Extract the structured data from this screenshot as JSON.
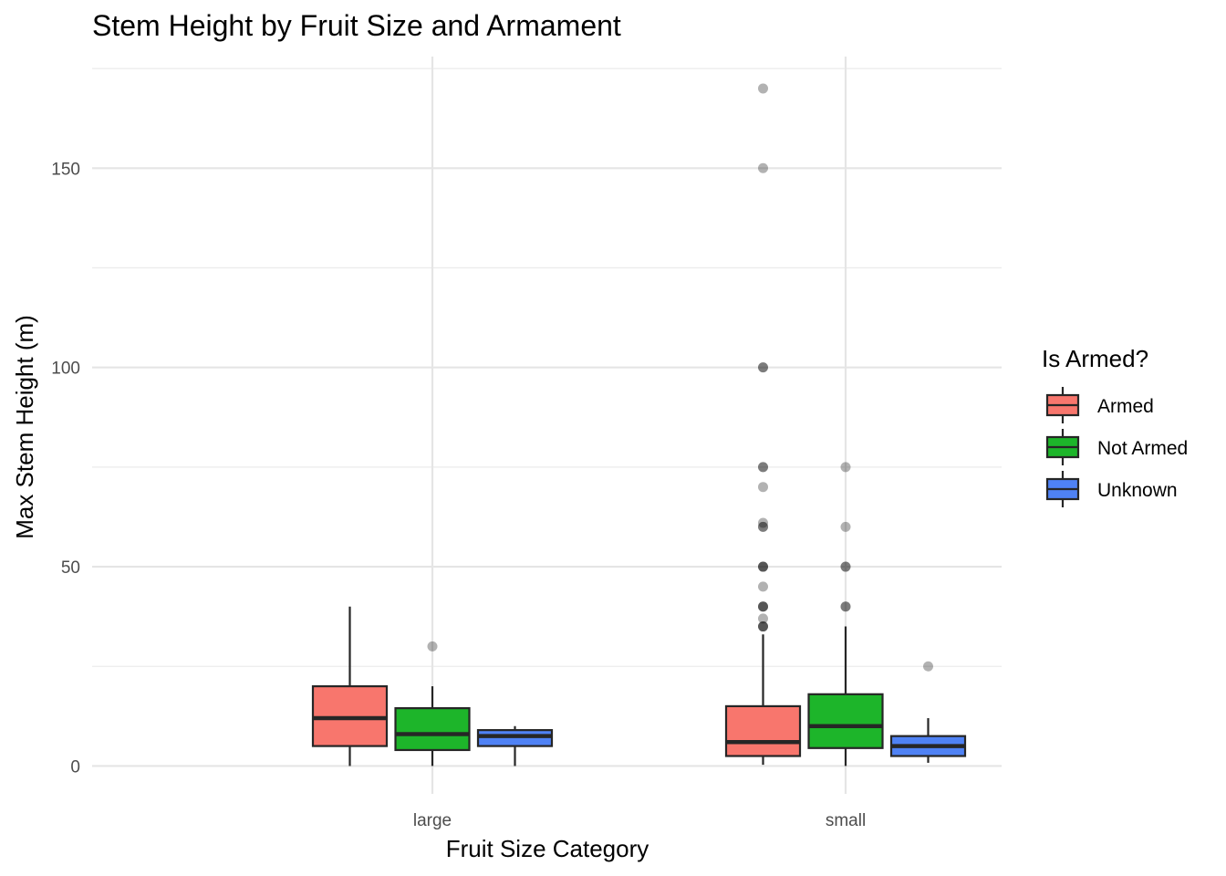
{
  "chart_data": {
    "type": "boxplot",
    "title": "Stem Height by Fruit Size and Armament",
    "xlabel": "Fruit Size Category",
    "ylabel": "Max Stem Height (m)",
    "ylim": [
      -7,
      178
    ],
    "yticks": [
      0,
      50,
      100,
      150
    ],
    "categories": [
      "large",
      "small"
    ],
    "grid": true,
    "legend": {
      "title": "Is Armed?",
      "position": "right"
    },
    "series": [
      {
        "name": "Armed",
        "color": "#F8766D",
        "boxes": [
          {
            "category": "large",
            "whisker_low": 0,
            "q1": 5,
            "median": 12,
            "q3": 20,
            "whisker_high": 40,
            "outliers": []
          },
          {
            "category": "small",
            "whisker_low": 0.3,
            "q1": 2.5,
            "median": 6,
            "q3": 15,
            "whisker_high": 33,
            "outliers": [
              170,
              150,
              100,
              100,
              75,
              75,
              70,
              61,
              60,
              60,
              50,
              50,
              50,
              45,
              40,
              40,
              40,
              37,
              35,
              35,
              35
            ]
          }
        ]
      },
      {
        "name": "Not Armed",
        "color": "#1DB52A",
        "boxes": [
          {
            "category": "large",
            "whisker_low": 0,
            "q1": 4,
            "median": 8,
            "q3": 14.5,
            "whisker_high": 20,
            "outliers": [
              30
            ]
          },
          {
            "category": "small",
            "whisker_low": 0,
            "q1": 4.5,
            "median": 10,
            "q3": 18,
            "whisker_high": 35,
            "outliers": [
              75,
              60,
              50,
              50,
              40,
              40
            ]
          }
        ]
      },
      {
        "name": "Unknown",
        "color": "#4F82F5",
        "boxes": [
          {
            "category": "large",
            "whisker_low": 0,
            "q1": 5,
            "median": 7.5,
            "q3": 9,
            "whisker_high": 10,
            "outliers": []
          },
          {
            "category": "small",
            "whisker_low": 0.8,
            "q1": 2.5,
            "median": 5,
            "q3": 7.5,
            "whisker_high": 12,
            "outliers": [
              25
            ]
          }
        ]
      }
    ]
  }
}
